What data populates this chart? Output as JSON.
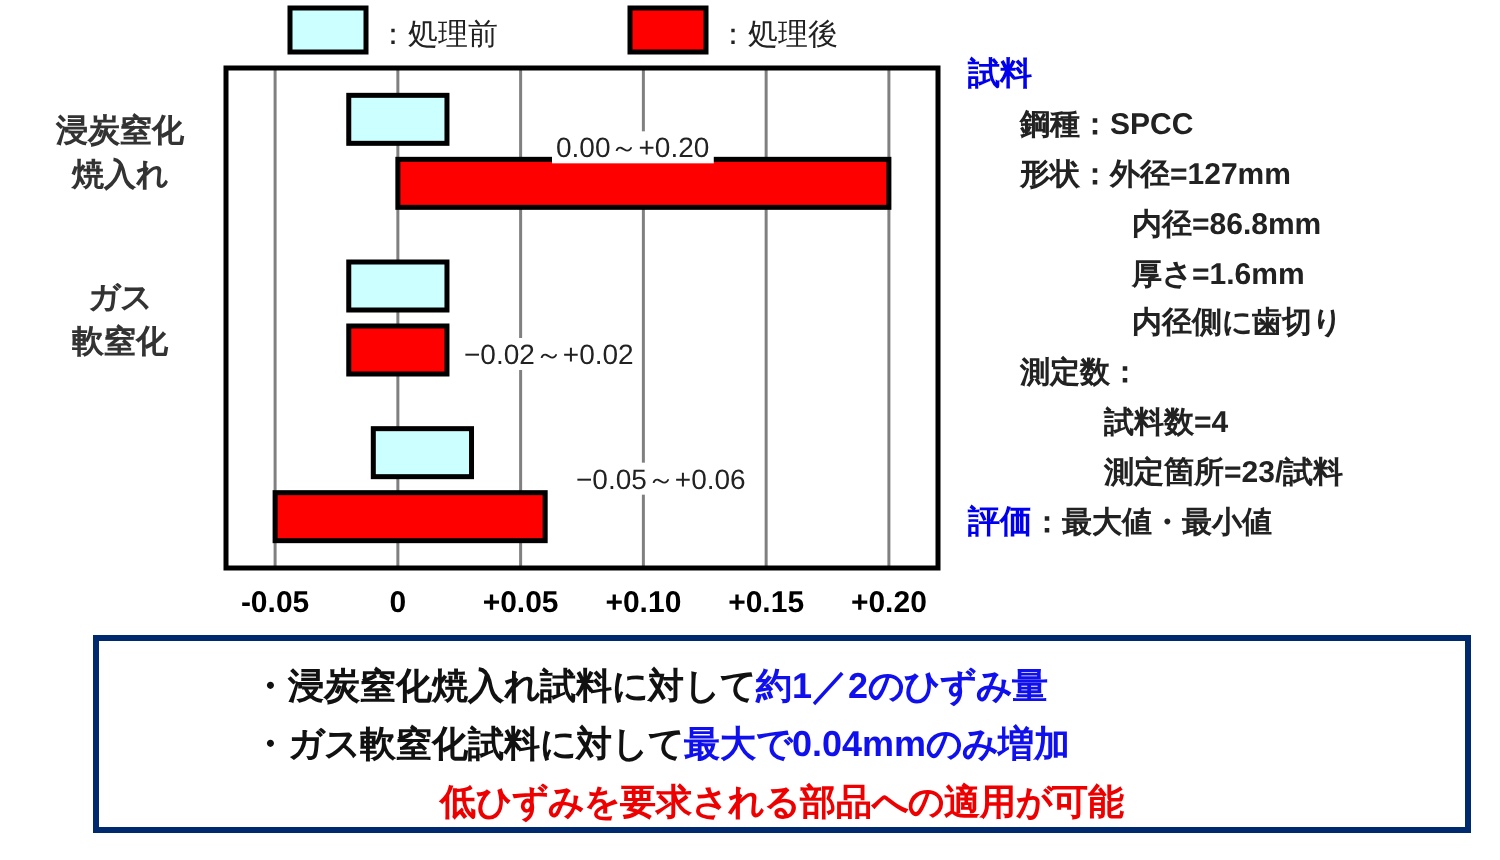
{
  "chart_data": {
    "type": "bar",
    "orientation": "horizontal",
    "categories": [
      "浸炭窒化焼入れ",
      "ガス軟窒化",
      null
    ],
    "series": [
      {
        "name": "：処理前",
        "color": "#ccffff",
        "base": [
          -0.02,
          -0.02,
          -0.01
        ],
        "values": [
          0.04,
          0.04,
          0.04
        ]
      },
      {
        "name": "：処理後",
        "color": "#ff0000",
        "base": [
          0,
          -0.02,
          -0.05
        ],
        "values": [
          0.2,
          0.04,
          0.11
        ]
      }
    ],
    "xlim": [
      -0.07,
      0.22
    ],
    "xticks": [
      {
        "value": -0.05,
        "label": "-0.05"
      },
      0,
      {
        "value": 0.05,
        "label": "+0.05"
      },
      {
        "value": 0.1,
        "label": "+0.10"
      },
      {
        "value": 0.15,
        "label": "+0.15"
      },
      {
        "value": 0.2,
        "label": "+0.20"
      }
    ],
    "grid": "x",
    "legend": "top",
    "annotations": [
      "0.00～+0.20",
      "−0.02～+0.02",
      "−0.05～+0.06",
      "試料",
      "鋼種：SPCC",
      "形状：外径=127mm",
      "内径=86.8mm",
      "厚さ=1.6mm",
      "内径側に歯切り",
      "測定数：",
      "試料数=4",
      "測定箇所=23/試料",
      "評価",
      "：最大値・最小値",
      "・浸炭窒化焼入れ試料に対して",
      "約1／2のひずみ量",
      "・ガス軟窒化試料に対して",
      "最大で0.04mmのみ増加",
      "低ひずみを要求される部品への適用が可能"
    ]
  }
}
